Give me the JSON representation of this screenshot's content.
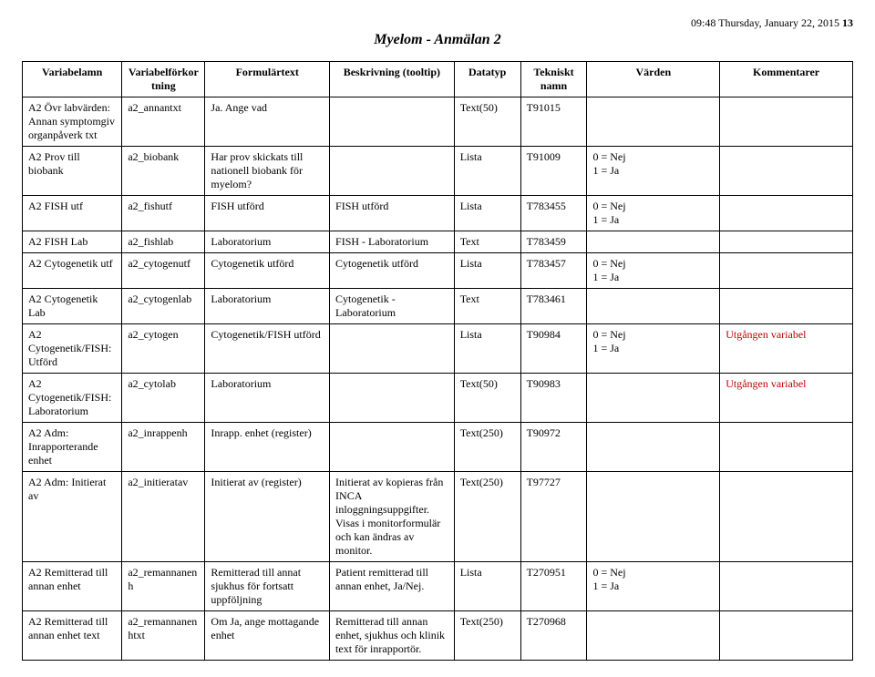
{
  "timestamp": "09:48  Thursday, January 22, 2015",
  "pageNumber": "13",
  "title": "Myelom - Anmälan 2",
  "columns": [
    "Variabelamn",
    "Variabelförkortning",
    "Formulärtext",
    "Beskrivning (tooltip)",
    "Datatyp",
    "Tekniskt namn",
    "Värden",
    "Kommentarer"
  ],
  "rows": [
    {
      "c1": "A2 Övr labvärden: Annan symptomgiv organpåverk txt",
      "c2": "a2_annantxt",
      "c3": "Ja. Ange vad",
      "c4": "",
      "c5": "Text(50)",
      "c6": "T91015",
      "c7": "",
      "c8": ""
    },
    {
      "c1": "A2 Prov till biobank",
      "c2": "a2_biobank",
      "c3": "Har prov skickats till nationell biobank för myelom?",
      "c4": "",
      "c5": "Lista",
      "c6": "T91009",
      "c7": "0 = Nej\n1 = Ja",
      "c8": ""
    },
    {
      "c1": "A2 FISH utf",
      "c2": "a2_fishutf",
      "c3": "FISH utförd",
      "c4": "FISH utförd",
      "c5": "Lista",
      "c6": "T783455",
      "c7": "0 = Nej\n1 = Ja",
      "c8": ""
    },
    {
      "c1": "A2 FISH Lab",
      "c2": "a2_fishlab",
      "c3": "Laboratorium",
      "c4": "FISH - Laboratorium",
      "c5": "Text",
      "c6": "T783459",
      "c7": "",
      "c8": ""
    },
    {
      "c1": "A2 Cytogenetik utf",
      "c2": "a2_cytogenutf",
      "c3": "Cytogenetik utförd",
      "c4": "Cytogenetik utförd",
      "c5": "Lista",
      "c6": "T783457",
      "c7": "0 = Nej\n1 = Ja",
      "c8": ""
    },
    {
      "c1": "A2 Cytogenetik Lab",
      "c2": "a2_cytogenlab",
      "c3": "Laboratorium",
      "c4": "Cytogenetik - Laboratorium",
      "c5": "Text",
      "c6": "T783461",
      "c7": "",
      "c8": ""
    },
    {
      "c1": "A2 Cytogenetik/FISH: Utförd",
      "c2": "a2_cytogen",
      "c3": "Cytogenetik/FISH utförd",
      "c4": "",
      "c5": "Lista",
      "c6": "T90984",
      "c7": "0 = Nej\n1 = Ja",
      "c8": "Utgången variabel"
    },
    {
      "c1": "A2 Cytogenetik/FISH: Laboratorium",
      "c2": "a2_cytolab",
      "c3": "Laboratorium",
      "c4": "",
      "c5": "Text(50)",
      "c6": "T90983",
      "c7": "",
      "c8": "Utgången variabel"
    },
    {
      "c1": "A2 Adm: Inrapporterande enhet",
      "c2": "a2_inrappenh",
      "c3": "Inrapp. enhet (register)",
      "c4": "",
      "c5": "Text(250)",
      "c6": "T90972",
      "c7": "",
      "c8": ""
    },
    {
      "c1": "A2 Adm: Initierat av",
      "c2": "a2_initieratav",
      "c3": "Initierat av (register)",
      "c4": "Initierat av kopieras från INCA inloggningsuppgifter. Visas i monitorformulär och kan ändras av monitor.",
      "c5": "Text(250)",
      "c6": "T97727",
      "c7": "",
      "c8": ""
    },
    {
      "c1": "A2 Remitterad till annan enhet",
      "c2": "a2_remannanenh",
      "c3": "Remitterad till annat sjukhus för fortsatt uppföljning",
      "c4": "Patient remitterad till annan enhet, Ja/Nej.",
      "c5": "Lista",
      "c6": "T270951",
      "c7": "0 = Nej\n1 = Ja",
      "c8": ""
    },
    {
      "c1": "A2 Remitterad till annan enhet text",
      "c2": "a2_remannanenhtxt",
      "c3": "Om Ja, ange mottagande enhet",
      "c4": "Remitterad till annan enhet, sjukhus och klinik text för inrapportör.",
      "c5": "Text(250)",
      "c6": "T270968",
      "c7": "",
      "c8": ""
    }
  ]
}
